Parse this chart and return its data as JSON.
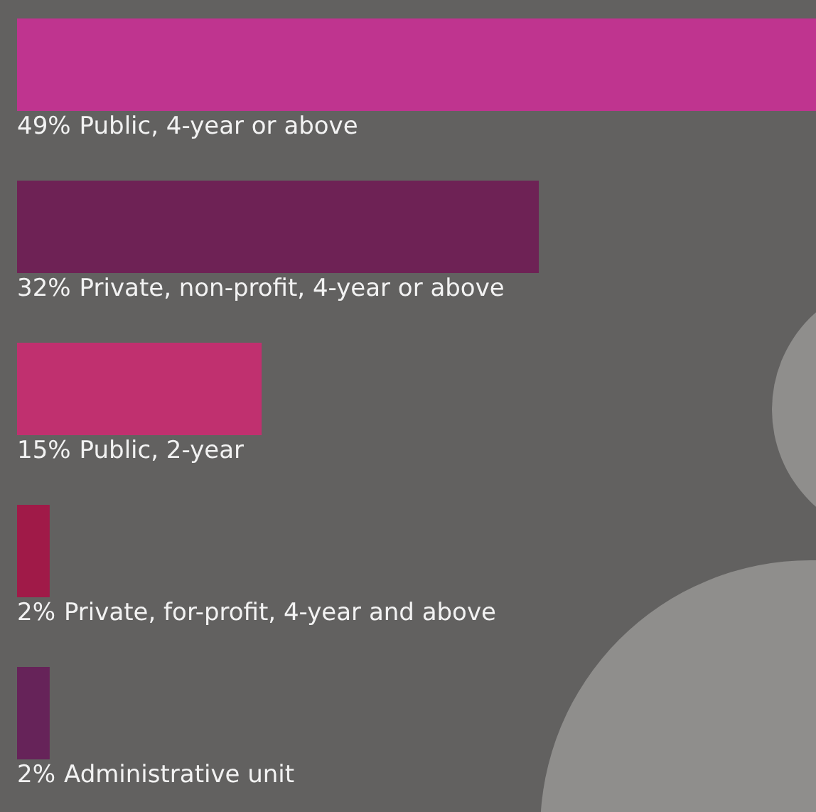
{
  "chart_data": {
    "type": "bar",
    "orientation": "horizontal",
    "categories": [
      "Public, 4-year or above",
      "Private, non-profit, 4-year or above",
      "Public, 2-year",
      "Private, for-profit, 4-year and above",
      "Administrative unit"
    ],
    "values": [
      49,
      32,
      15,
      2,
      2
    ],
    "colors": [
      "#bf348f",
      "#6e2255",
      "#c0306f",
      "#a01a48",
      "#662359"
    ],
    "value_labels": [
      "49%",
      "32%",
      "15%",
      "2%",
      "2%"
    ]
  }
}
